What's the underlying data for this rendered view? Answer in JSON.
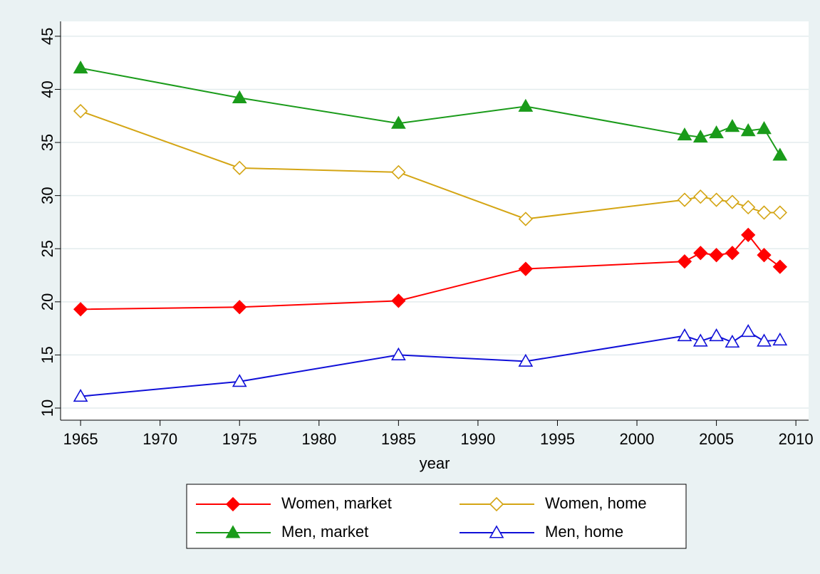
{
  "chart_data": {
    "type": "line",
    "x_label": "year",
    "x": [
      1965,
      1975,
      1985,
      1993,
      2003,
      2004,
      2005,
      2006,
      2007,
      2008,
      2009
    ],
    "series": [
      {
        "name": "Women, market",
        "color": "#ff0000",
        "marker": "diamond",
        "filled": true,
        "values": [
          19.3,
          19.5,
          20.1,
          23.1,
          23.8,
          24.6,
          24.4,
          24.6,
          26.3,
          24.4,
          23.3
        ]
      },
      {
        "name": "Women, home",
        "color": "#d4a514",
        "marker": "diamond",
        "filled": false,
        "values": [
          37.95,
          32.6,
          32.2,
          27.8,
          29.6,
          29.9,
          29.6,
          29.4,
          28.9,
          28.4,
          28.4
        ]
      },
      {
        "name": "Men, market",
        "color": "#1a9b1a",
        "marker": "triangle",
        "filled": true,
        "values": [
          42.0,
          39.2,
          36.8,
          38.4,
          35.7,
          35.5,
          35.9,
          36.5,
          36.1,
          36.3,
          33.8
        ]
      },
      {
        "name": "Men, home",
        "color": "#1010d8",
        "marker": "triangle",
        "filled": false,
        "values": [
          11.1,
          12.5,
          15.0,
          14.4,
          16.8,
          16.3,
          16.8,
          16.2,
          17.2,
          16.3,
          16.4
        ]
      }
    ],
    "xlim": [
      1963.74,
      2010.8
    ],
    "ylim": [
      8.86,
      46.4
    ],
    "xticks": [
      1965,
      1970,
      1975,
      1980,
      1985,
      1990,
      1995,
      2000,
      2005,
      2010
    ],
    "yticks": [
      10,
      15,
      20,
      25,
      30,
      35,
      40,
      45
    ],
    "grid": true,
    "legend_position": "bottom"
  }
}
